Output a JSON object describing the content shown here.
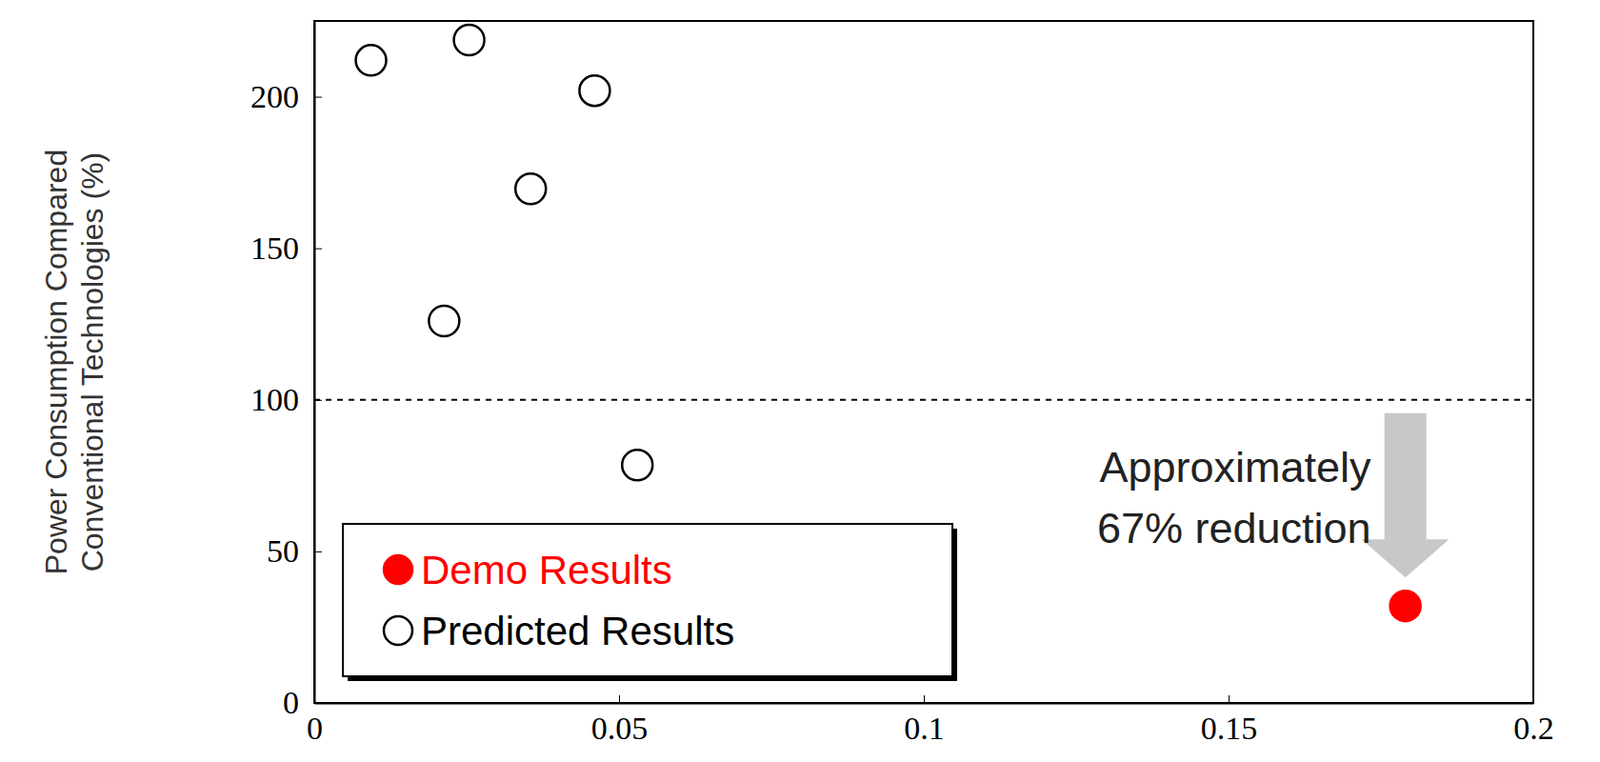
{
  "chart_data": {
    "type": "scatter",
    "ylabel_lines": [
      "Power Consumption Compared",
      "Conventional Technologies (%)"
    ],
    "xlim": [
      0,
      0.2
    ],
    "xticks": [
      0,
      0.05,
      0.1,
      0.15,
      0.2
    ],
    "ylim": [
      0,
      225
    ],
    "yticks": [
      0,
      50,
      100,
      150,
      200
    ],
    "grid": false,
    "legend": "lower left",
    "reference_lines": [
      {
        "y": 100,
        "line_style": "dashed"
      }
    ],
    "annotation": {
      "lines": [
        "Approximately",
        "67% reduction"
      ]
    },
    "series": [
      {
        "name": "Demo Results",
        "color": "#ff0000",
        "marker": "filled_circle",
        "x": [
          0.179
        ],
        "values": [
          32
        ]
      },
      {
        "name": "Predicted Results",
        "color": "#000000",
        "marker": "open_circle",
        "x": [
          0.0093,
          0.0254,
          0.046,
          0.0355,
          0.0213,
          0.053
        ],
        "values": [
          212,
          218.7,
          202,
          169.6,
          126,
          78.5
        ]
      }
    ]
  }
}
